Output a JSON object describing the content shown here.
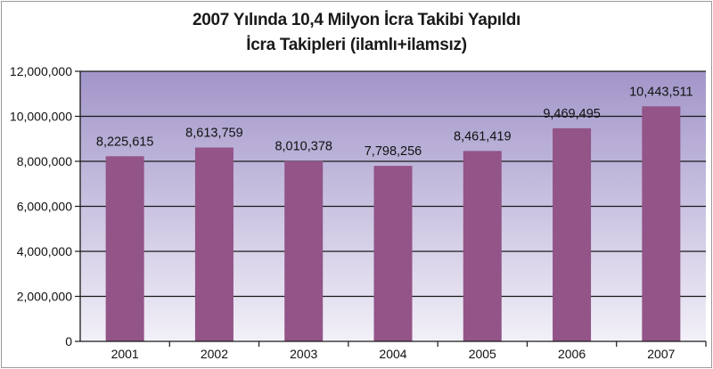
{
  "chart_data": {
    "type": "bar",
    "title": "2007 Yılında 10,4 Milyon İcra Takibi Yapıldı",
    "subtitle": "İcra Takipleri (ilamlı+ilamsız)",
    "categories": [
      "2001",
      "2002",
      "2003",
      "2004",
      "2005",
      "2006",
      "2007"
    ],
    "values": [
      8225615,
      8613759,
      8010378,
      7798256,
      8461419,
      9469495,
      10443511
    ],
    "value_labels": [
      "8,225,615",
      "8,613,759",
      "8,010,378",
      "7,798,256",
      "8,461,419",
      "9,469,495",
      "10,443,511"
    ],
    "ylim": [
      0,
      12000000
    ],
    "yticks": [
      0,
      2000000,
      4000000,
      6000000,
      8000000,
      10000000,
      12000000
    ],
    "ytick_labels": [
      "0",
      "2,000,000",
      "4,000,000",
      "6,000,000",
      "8,000,000",
      "10,000,000",
      "12,000,000"
    ],
    "xlabel": "",
    "ylabel": "",
    "grid": true,
    "legend": "none",
    "colors": {
      "bar": "#935488",
      "plot_top": "#a295c9",
      "plot_bottom": "#f2f0f8",
      "grid": "#1a1a1a",
      "text": "#111111"
    }
  }
}
